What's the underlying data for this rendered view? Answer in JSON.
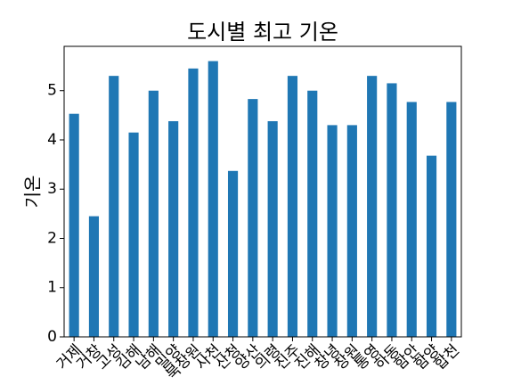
{
  "chart_data": {
    "type": "bar",
    "title": "도시별 최고 기온",
    "ylabel": "기온",
    "categories": [
      "거제",
      "거창",
      "고성",
      "김해",
      "남해",
      "밀양",
      "북창원",
      "사천",
      "산청",
      "양산",
      "의령",
      "진주",
      "진해",
      "창녕",
      "창원",
      "통영",
      "하동",
      "함안",
      "함양",
      "합천"
    ],
    "values": [
      4.53,
      2.45,
      5.3,
      4.15,
      5.0,
      4.38,
      5.45,
      5.6,
      3.37,
      4.83,
      4.38,
      5.3,
      5.0,
      4.3,
      4.3,
      5.3,
      5.15,
      4.77,
      3.68,
      4.77
    ],
    "color": "#1f77b4",
    "ylim": [
      0,
      5.9
    ],
    "yticks": [
      0,
      1,
      2,
      3,
      4,
      5
    ]
  }
}
